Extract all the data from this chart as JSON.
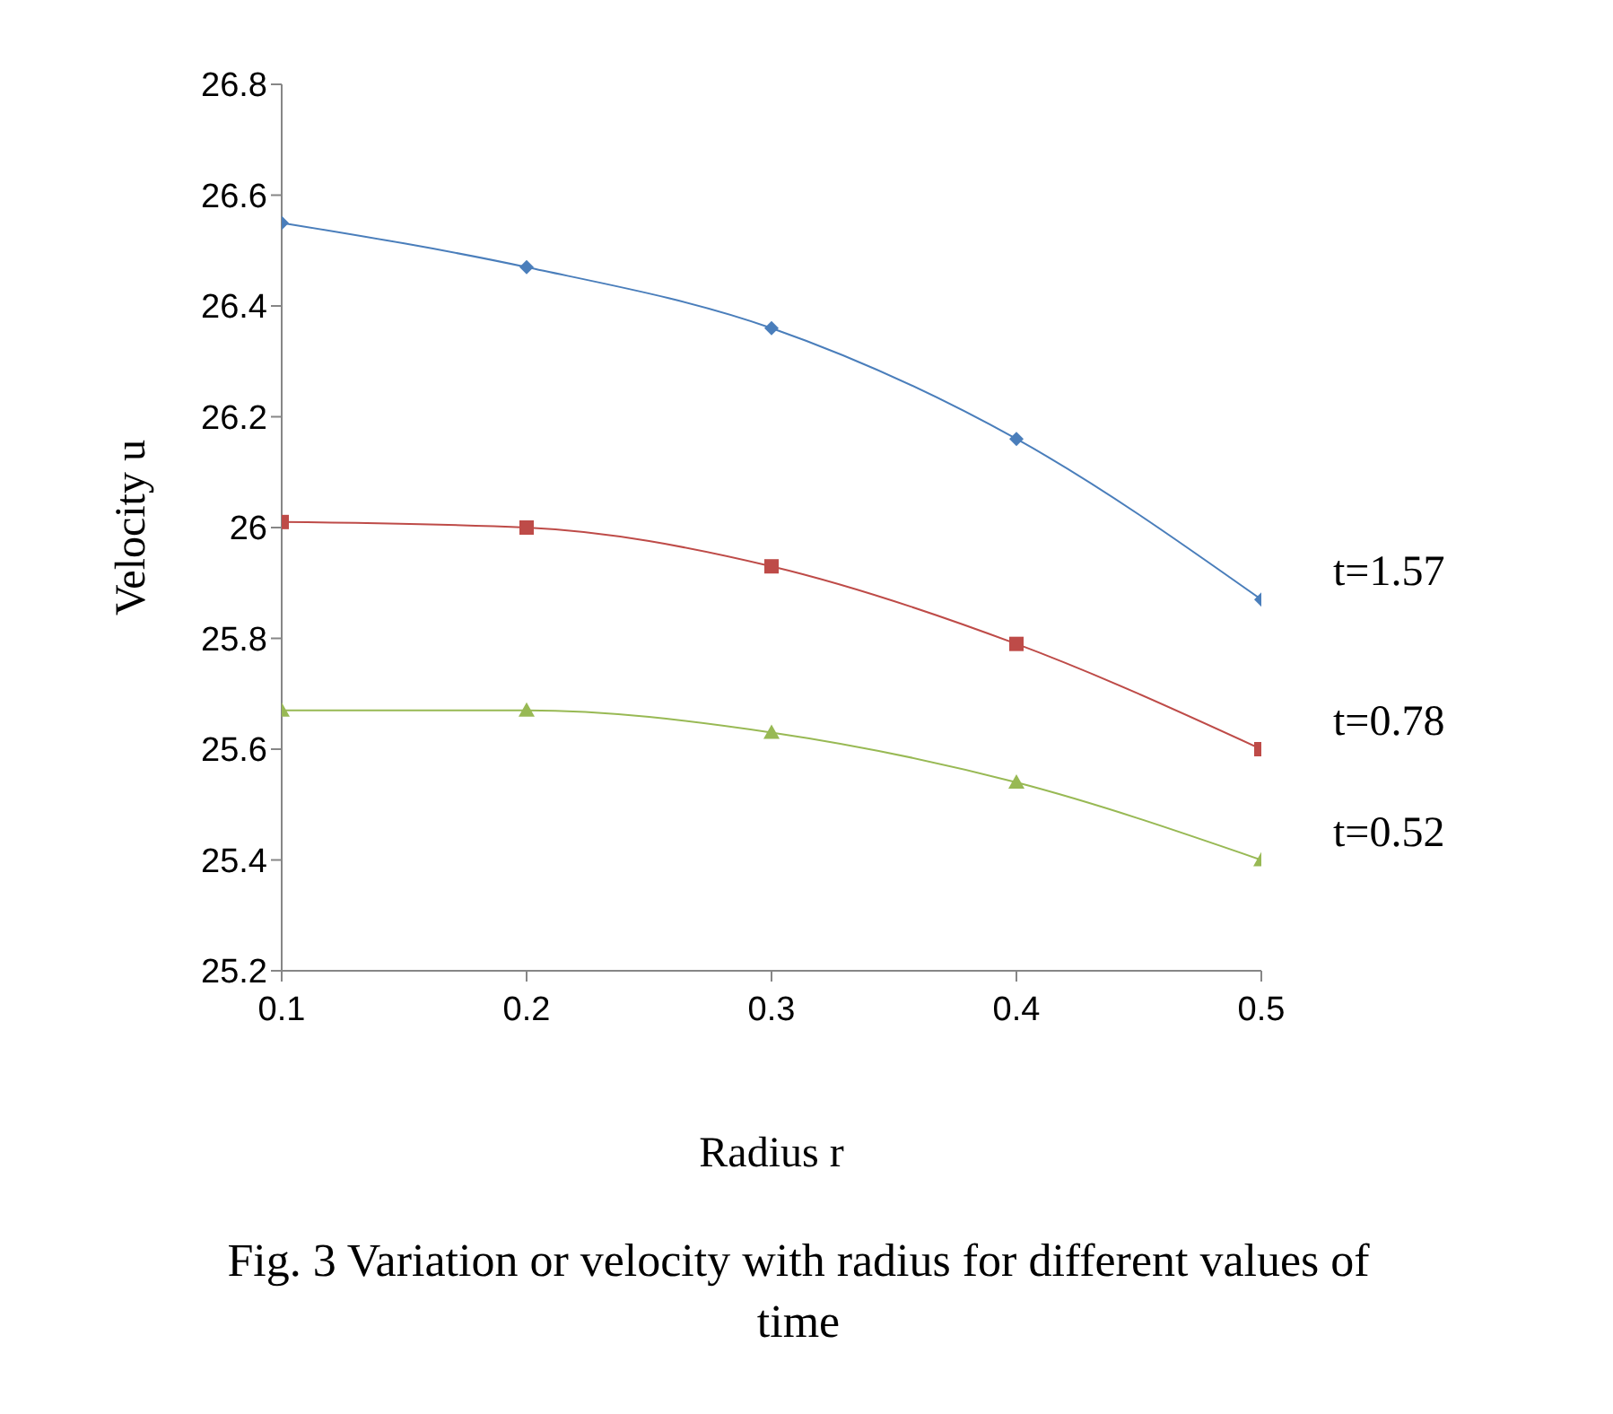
{
  "chart_data": {
    "type": "line",
    "xlabel": "Radius r",
    "ylabel": "Velocity u",
    "annotations": [
      "Fig. 3 Variation or velocity with radius for different values of time"
    ],
    "x": [
      0.1,
      0.2,
      0.3,
      0.4,
      0.5
    ],
    "xlim": [
      0.1,
      0.5
    ],
    "xticks": [
      0.1,
      0.2,
      0.3,
      0.4,
      0.5
    ],
    "ylim": [
      25.2,
      26.8
    ],
    "yticks": [
      25.2,
      25.4,
      25.6,
      25.8,
      26,
      26.2,
      26.4,
      26.6,
      26.8
    ],
    "grid": false,
    "legend": false,
    "line_style": "solid",
    "series": [
      {
        "name": "t=1.57",
        "color": "#4a7ebb",
        "marker": "diamond",
        "values": [
          26.55,
          26.47,
          26.36,
          26.16,
          25.87
        ]
      },
      {
        "name": "t=0.78",
        "color": "#be4b48",
        "marker": "square",
        "values": [
          26.01,
          26.0,
          25.93,
          25.79,
          25.6
        ]
      },
      {
        "name": "t=0.52",
        "color": "#98b954",
        "marker": "triangle",
        "values": [
          25.67,
          25.67,
          25.63,
          25.54,
          25.4
        ]
      }
    ]
  }
}
